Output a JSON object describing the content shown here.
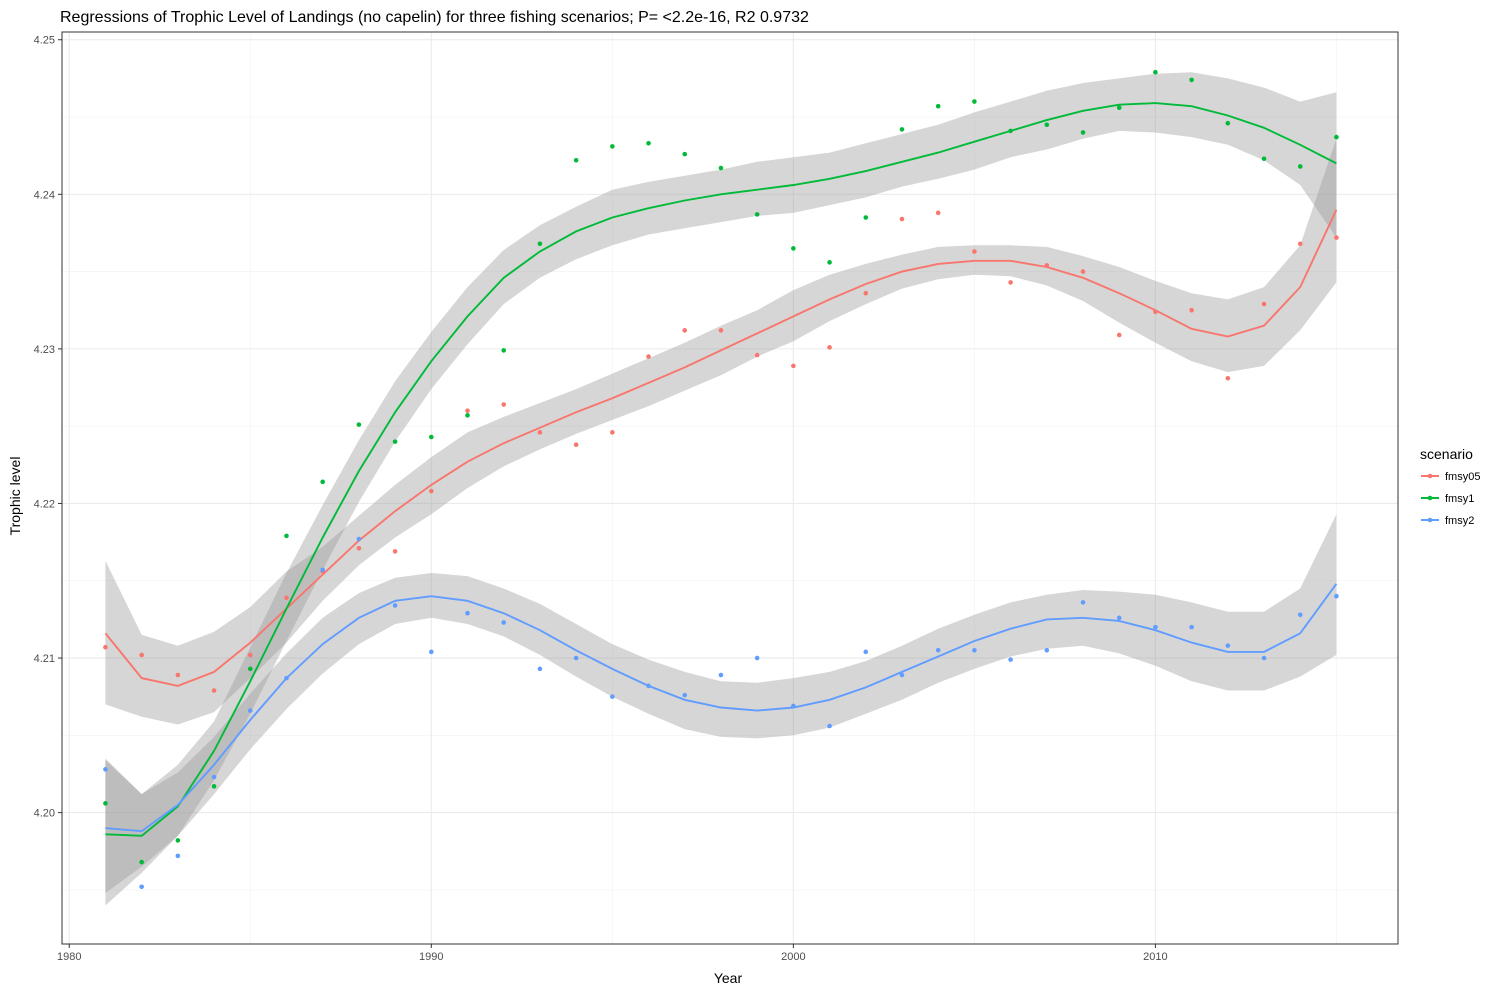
{
  "chart_data": {
    "type": "scatter",
    "title": "Regressions of Trophic Level of Landings (no capelin) for three fishing scenarios; P= <2.2e-16, R2 0.9732",
    "xlabel": "Year",
    "ylabel": "Trophic level",
    "xlim": [
      1979.8,
      2016.7
    ],
    "ylim": [
      4.1915,
      4.2505
    ],
    "xticks": [
      1980,
      1990,
      2000,
      2010
    ],
    "xtick_labels": [
      "1980",
      "1990",
      "2000",
      "2010"
    ],
    "yticks": [
      4.2,
      4.21,
      4.22,
      4.23,
      4.24,
      4.25
    ],
    "ytick_labels": [
      "4.20",
      "4.21",
      "4.22",
      "4.23",
      "4.24",
      "4.25"
    ],
    "grid": true,
    "legend": {
      "title": "scenario",
      "position": "right"
    },
    "series": [
      {
        "name": "fmsy05",
        "color": "#F8766D",
        "points": {
          "x": [
            1981,
            1982,
            1983,
            1984,
            1985,
            1986,
            1987,
            1988,
            1989,
            1990,
            1991,
            1992,
            1993,
            1994,
            1995,
            1996,
            1997,
            1998,
            1999,
            2000,
            2001,
            2002,
            2003,
            2004,
            2005,
            2006,
            2007,
            2008,
            2009,
            2010,
            2011,
            2012,
            2013,
            2014,
            2015
          ],
          "y": [
            4.2107,
            4.2102,
            4.2089,
            4.2079,
            4.2102,
            4.2139,
            4.2156,
            4.2171,
            4.2169,
            4.2208,
            4.226,
            4.2264,
            4.2246,
            4.2238,
            4.2246,
            4.2295,
            4.2312,
            4.2312,
            4.2296,
            4.2289,
            4.2301,
            4.2336,
            4.2384,
            4.2388,
            4.2363,
            4.2343,
            4.2354,
            4.235,
            4.2309,
            4.2324,
            4.2325,
            4.2281,
            4.2329,
            4.2368,
            4.2372
          ]
        },
        "fit": {
          "x": [
            1981,
            1982,
            1983,
            1984,
            1985,
            1986,
            1987,
            1988,
            1989,
            1990,
            1991,
            1992,
            1993,
            1994,
            1995,
            1996,
            1997,
            1998,
            1999,
            2000,
            2001,
            2002,
            2003,
            2004,
            2005,
            2006,
            2007,
            2008,
            2009,
            2010,
            2011,
            2012,
            2013,
            2014,
            2015
          ],
          "y": [
            4.2116,
            4.2087,
            4.2082,
            4.2091,
            4.211,
            4.2132,
            4.2154,
            4.2176,
            4.2195,
            4.2212,
            4.2227,
            4.2239,
            4.2249,
            4.2259,
            4.2268,
            4.2278,
            4.2288,
            4.2299,
            4.231,
            4.2321,
            4.2332,
            4.2342,
            4.235,
            4.2355,
            4.2357,
            4.2357,
            4.2353,
            4.2346,
            4.2336,
            4.2325,
            4.2313,
            4.2308,
            4.2315,
            4.234,
            4.239
          ],
          "lower": [
            4.207,
            4.2062,
            4.2057,
            4.2065,
            4.2087,
            4.211,
            4.2137,
            4.216,
            4.2178,
            4.2193,
            4.221,
            4.2224,
            4.2235,
            4.2245,
            4.2254,
            4.2263,
            4.2273,
            4.2283,
            4.2295,
            4.2305,
            4.2318,
            4.2329,
            4.2339,
            4.2345,
            4.2348,
            4.2347,
            4.2341,
            4.2331,
            4.2317,
            4.2304,
            4.2292,
            4.2285,
            4.2289,
            4.2312,
            4.2343
          ],
          "upper": [
            4.2163,
            4.2115,
            4.2108,
            4.2117,
            4.2133,
            4.2156,
            4.2172,
            4.2192,
            4.2212,
            4.223,
            4.2246,
            4.2256,
            4.2265,
            4.2274,
            4.2284,
            4.2294,
            4.2304,
            4.2315,
            4.2325,
            4.2338,
            4.2348,
            4.2355,
            4.2361,
            4.2366,
            4.2367,
            4.2367,
            4.2366,
            4.236,
            4.2353,
            4.2344,
            4.2336,
            4.2332,
            4.234,
            4.2367,
            4.2436
          ]
        }
      },
      {
        "name": "fmsy1",
        "color": "#00BA38",
        "points": {
          "x": [
            1981,
            1982,
            1983,
            1984,
            1985,
            1986,
            1987,
            1988,
            1989,
            1990,
            1991,
            1992,
            1993,
            1994,
            1995,
            1996,
            1997,
            1998,
            1999,
            2000,
            2001,
            2002,
            2003,
            2004,
            2005,
            2006,
            2007,
            2008,
            2009,
            2010,
            2011,
            2012,
            2013,
            2014,
            2015
          ],
          "y": [
            4.2006,
            4.1968,
            4.1982,
            4.2017,
            4.2093,
            4.2179,
            4.2214,
            4.2251,
            4.224,
            4.2243,
            4.2257,
            4.2299,
            4.2368,
            4.2422,
            4.2431,
            4.2433,
            4.2426,
            4.2417,
            4.2387,
            4.2365,
            4.2356,
            4.2385,
            4.2442,
            4.2457,
            4.246,
            4.2441,
            4.2445,
            4.244,
            4.2456,
            4.2479,
            4.2474,
            4.2446,
            4.2423,
            4.2418,
            4.2437
          ]
        },
        "fit": {
          "x": [
            1981,
            1982,
            1983,
            1984,
            1985,
            1986,
            1987,
            1988,
            1989,
            1990,
            1991,
            1992,
            1993,
            1994,
            1995,
            1996,
            1997,
            1998,
            1999,
            2000,
            2001,
            2002,
            2003,
            2004,
            2005,
            2006,
            2007,
            2008,
            2009,
            2010,
            2011,
            2012,
            2013,
            2014,
            2015
          ],
          "y": [
            4.1986,
            4.1985,
            4.2004,
            4.204,
            4.2085,
            4.2132,
            4.2178,
            4.2221,
            4.2259,
            4.2292,
            4.2321,
            4.2346,
            4.2363,
            4.2376,
            4.2385,
            4.2391,
            4.2396,
            4.24,
            4.2403,
            4.2406,
            4.241,
            4.2415,
            4.2421,
            4.2427,
            4.2434,
            4.2441,
            4.2448,
            4.2454,
            4.2458,
            4.2459,
            4.2457,
            4.2451,
            4.2443,
            4.2432,
            4.242
          ],
          "lower": [
            4.194,
            4.1961,
            4.1985,
            4.2021,
            4.2064,
            4.2111,
            4.2157,
            4.2201,
            4.224,
            4.2274,
            4.2303,
            4.2329,
            4.2346,
            4.2358,
            4.2367,
            4.2374,
            4.2378,
            4.2382,
            4.2386,
            4.2388,
            4.2393,
            4.2398,
            4.2405,
            4.241,
            4.2416,
            4.2424,
            4.2429,
            4.2436,
            4.2441,
            4.244,
            4.2437,
            4.2432,
            4.2422,
            4.2406,
            4.2372
          ],
          "upper": [
            4.2034,
            4.2012,
            4.2031,
            4.2059,
            4.2107,
            4.2155,
            4.2199,
            4.2241,
            4.2279,
            4.2311,
            4.234,
            4.2364,
            4.238,
            4.2392,
            4.2403,
            4.2408,
            4.2412,
            4.2416,
            4.2421,
            4.2424,
            4.2427,
            4.2433,
            4.2439,
            4.2445,
            4.2453,
            4.246,
            4.2467,
            4.2472,
            4.2475,
            4.2478,
            4.2479,
            4.2475,
            4.2469,
            4.246,
            4.2466
          ]
        }
      },
      {
        "name": "fmsy2",
        "color": "#619CFF",
        "points": {
          "x": [
            1981,
            1982,
            1983,
            1984,
            1985,
            1986,
            1987,
            1988,
            1989,
            1990,
            1991,
            1992,
            1993,
            1994,
            1995,
            1996,
            1997,
            1998,
            1999,
            2000,
            2001,
            2002,
            2003,
            2004,
            2005,
            2006,
            2007,
            2008,
            2009,
            2010,
            2011,
            2012,
            2013,
            2014,
            2015
          ],
          "y": [
            4.2028,
            4.1952,
            4.1972,
            4.2023,
            4.2066,
            4.2087,
            4.2157,
            4.2177,
            4.2134,
            4.2104,
            4.2129,
            4.2123,
            4.2093,
            4.21,
            4.2075,
            4.2082,
            4.2076,
            4.2089,
            4.21,
            4.2069,
            4.2056,
            4.2104,
            4.2089,
            4.2105,
            4.2105,
            4.2099,
            4.2105,
            4.2136,
            4.2126,
            4.212,
            4.212,
            4.2108,
            4.21,
            4.2128,
            4.214
          ]
        },
        "fit": {
          "x": [
            1981,
            1982,
            1983,
            1984,
            1985,
            1986,
            1987,
            1988,
            1989,
            1990,
            1991,
            1992,
            1993,
            1994,
            1995,
            1996,
            1997,
            1998,
            1999,
            2000,
            2001,
            2002,
            2003,
            2004,
            2005,
            2006,
            2007,
            2008,
            2009,
            2010,
            2011,
            2012,
            2013,
            2014,
            2015
          ],
          "y": [
            4.199,
            4.1988,
            4.2005,
            4.2031,
            4.206,
            4.2087,
            4.2109,
            4.2126,
            4.2137,
            4.214,
            4.2137,
            4.2129,
            4.2118,
            4.2105,
            4.2093,
            4.2082,
            4.2073,
            4.2068,
            4.2066,
            4.2068,
            4.2073,
            4.2081,
            4.2091,
            4.2101,
            4.2111,
            4.2119,
            4.2125,
            4.2126,
            4.2124,
            4.2118,
            4.211,
            4.2104,
            4.2104,
            4.2116,
            4.2148
          ],
          "lower": [
            4.1948,
            4.1965,
            4.1985,
            4.2012,
            4.2041,
            4.2067,
            4.209,
            4.2109,
            4.2122,
            4.2126,
            4.2122,
            4.2114,
            4.2102,
            4.2088,
            4.2075,
            4.2064,
            4.2054,
            4.2049,
            4.2048,
            4.205,
            4.2055,
            4.2064,
            4.2073,
            4.2084,
            4.2093,
            4.2101,
            4.2106,
            4.2108,
            4.2103,
            4.2095,
            4.2085,
            4.2079,
            4.2079,
            4.2088,
            4.2102
          ],
          "upper": [
            4.2035,
            4.2012,
            4.2026,
            4.2049,
            4.2077,
            4.2103,
            4.2126,
            4.2142,
            4.2152,
            4.2155,
            4.2153,
            4.2145,
            4.2135,
            4.2122,
            4.2109,
            4.2099,
            4.2091,
            4.2085,
            4.2084,
            4.2087,
            4.2091,
            4.2098,
            4.2108,
            4.2119,
            4.2128,
            4.2136,
            4.2141,
            4.2144,
            4.2143,
            4.2141,
            4.2136,
            4.213,
            4.213,
            4.2145,
            4.2193
          ]
        }
      }
    ]
  }
}
